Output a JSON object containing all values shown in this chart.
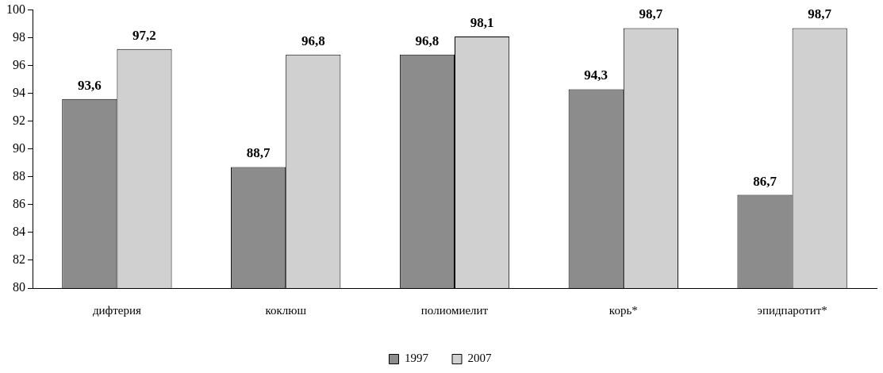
{
  "chart_data": {
    "type": "bar",
    "categories": [
      "дифтерия",
      "коклюш",
      "полиомиелит",
      "корь*",
      "эпидпаротит*"
    ],
    "series": [
      {
        "name": "1997",
        "color": "#8c8c8c",
        "values": [
          93.6,
          88.7,
          96.8,
          94.3,
          86.7
        ],
        "value_labels": [
          "93,6",
          "88,7",
          "96,8",
          "94,3",
          "86,7"
        ]
      },
      {
        "name": "2007",
        "color": "#d0d0d0",
        "values": [
          97.2,
          96.8,
          98.1,
          98.7,
          98.7
        ],
        "value_labels": [
          "97,2",
          "96,8",
          "98,1",
          "98,7",
          "98,7"
        ]
      }
    ],
    "ylim": [
      80,
      100
    ],
    "yticks": [
      80,
      82,
      84,
      86,
      88,
      90,
      92,
      94,
      96,
      98,
      100
    ],
    "grid": false,
    "legend": "bottom"
  }
}
